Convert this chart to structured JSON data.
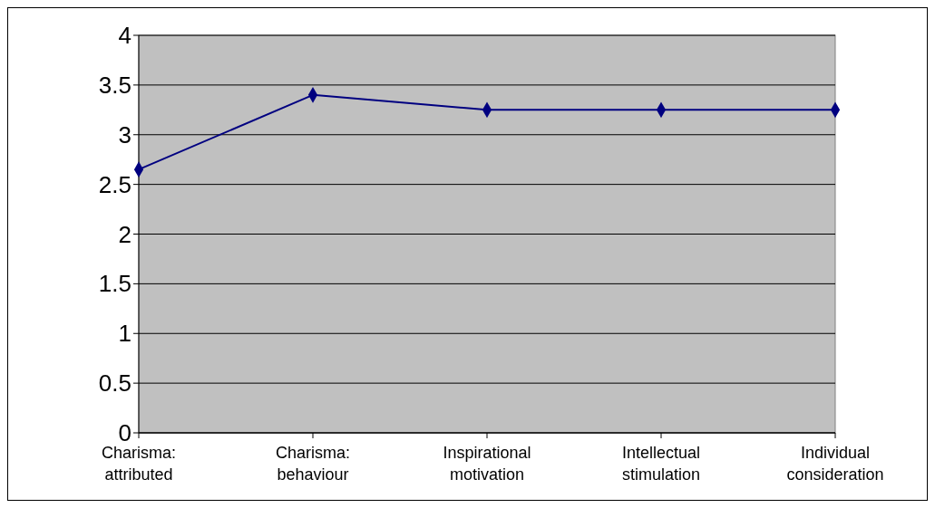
{
  "chart_data": {
    "type": "line",
    "categories": [
      "Charisma: attributed",
      "Charisma: behaviour",
      "Inspirational motivation",
      "Intellectual stimulation",
      "Individual consideration"
    ],
    "series": [
      {
        "color": "#000080",
        "values": [
          2.65,
          3.4,
          3.25,
          3.25,
          3.25
        ]
      }
    ],
    "ylim": [
      0,
      4
    ],
    "yticks": [
      0,
      0.5,
      1,
      1.5,
      2,
      2.5,
      3,
      3.5,
      4
    ],
    "grid": "y",
    "marker": "diamond",
    "line_style": "solid"
  }
}
